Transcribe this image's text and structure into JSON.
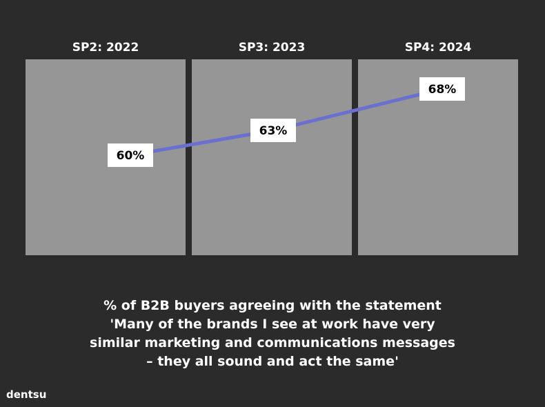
{
  "chart_data": {
    "type": "line",
    "categories": [
      "SP2: 2022",
      "SP3: 2023",
      "SP4: 2024"
    ],
    "series": [
      {
        "values": [
          60,
          63,
          68
        ],
        "labels": [
          "60%",
          "63%",
          "68%"
        ]
      }
    ],
    "ylim": [
      45,
      75
    ],
    "grid": false,
    "legend": "none"
  },
  "caption": {
    "lines": [
      "% of B2B buyers agreeing with the statement",
      "'Many of the brands I see at work have very",
      "similar marketing and communications messages",
      "– they all sound and act the same'"
    ]
  },
  "brand": {
    "logo_text": "dentsu"
  },
  "colors": {
    "background": "#2b2b2b",
    "panel": "#969696",
    "line": "#6b6fcf",
    "label_box": "#ffffff",
    "text": "#ffffff"
  }
}
